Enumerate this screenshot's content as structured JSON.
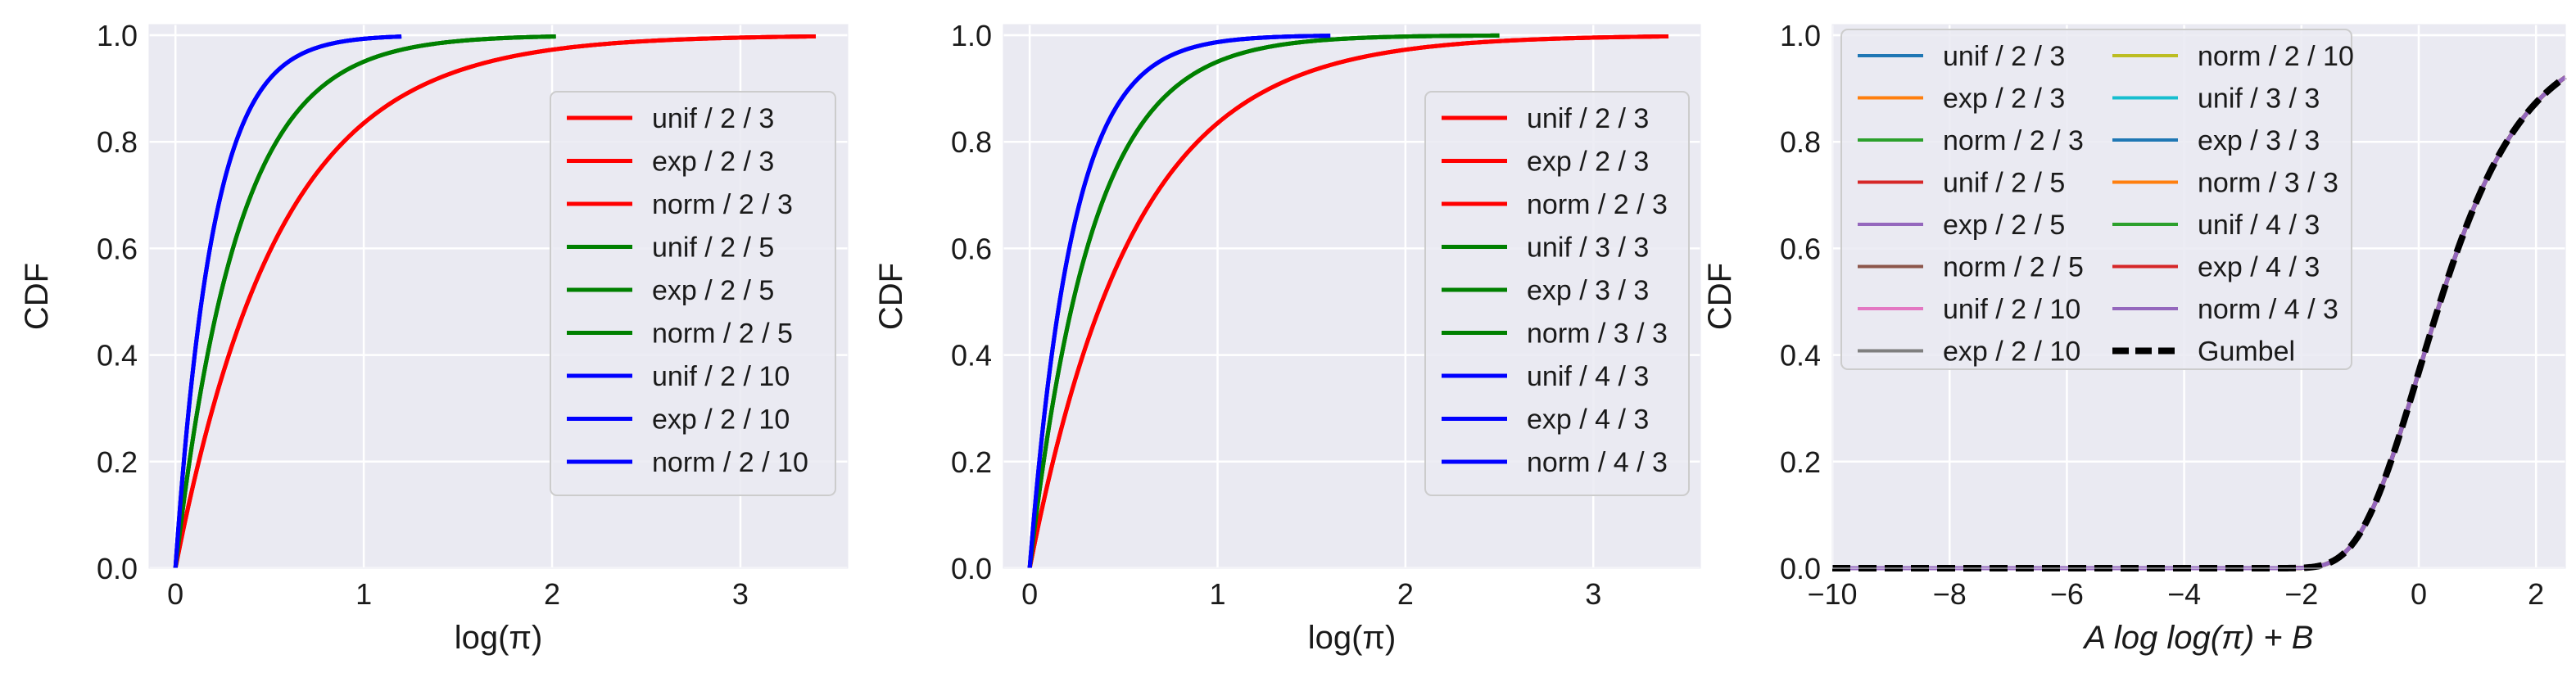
{
  "chart_data": [
    {
      "type": "line",
      "subtype": "cdf",
      "xlabel": "log(π)",
      "ylabel": "CDF",
      "xlim": [
        -0.14,
        3.57
      ],
      "ylim": [
        0,
        1.02
      ],
      "xticks": [
        0,
        1,
        2,
        3
      ],
      "xtick_labels": [
        "0",
        "1",
        "2",
        "3"
      ],
      "yticks": [
        0,
        0.2,
        0.4,
        0.6,
        0.8,
        1.0
      ],
      "ytick_labels": [
        "0.0",
        "0.2",
        "0.4",
        "0.6",
        "0.8",
        "1.0"
      ],
      "grid": true,
      "legend": {
        "position": "center-right",
        "columns": 1
      },
      "series": [
        {
          "name": "unif / 2 / 3",
          "color": "#ff0000",
          "dist": "exp",
          "scale": 0.555,
          "xmax": 3.4
        },
        {
          "name": "exp / 2 / 3",
          "color": "#ff0000",
          "dist": "exp",
          "scale": 0.555,
          "xmax": 3.4
        },
        {
          "name": "norm / 2 / 3",
          "color": "#ff0000",
          "dist": "exp",
          "scale": 0.555,
          "xmax": 3.4
        },
        {
          "name": "unif / 2 / 5",
          "color": "#008000",
          "dist": "exp",
          "scale": 0.333,
          "xmax": 2.02
        },
        {
          "name": "exp / 2 / 5",
          "color": "#008000",
          "dist": "exp",
          "scale": 0.333,
          "xmax": 2.02
        },
        {
          "name": "norm / 2 / 5",
          "color": "#008000",
          "dist": "exp",
          "scale": 0.333,
          "xmax": 2.02
        },
        {
          "name": "unif / 2 / 10",
          "color": "#0000ff",
          "dist": "exp",
          "scale": 0.2,
          "xmax": 1.2
        },
        {
          "name": "exp / 2 / 10",
          "color": "#0000ff",
          "dist": "exp",
          "scale": 0.2,
          "xmax": 1.2
        },
        {
          "name": "norm / 2 / 10",
          "color": "#0000ff",
          "dist": "exp",
          "scale": 0.2,
          "xmax": 1.2
        }
      ]
    },
    {
      "type": "line",
      "subtype": "cdf",
      "xlabel": "log(π)",
      "ylabel": "CDF",
      "xlim": [
        -0.14,
        3.57
      ],
      "ylim": [
        0,
        1.02
      ],
      "xticks": [
        0,
        1,
        2,
        3
      ],
      "xtick_labels": [
        "0",
        "1",
        "2",
        "3"
      ],
      "yticks": [
        0,
        0.2,
        0.4,
        0.6,
        0.8,
        1.0
      ],
      "ytick_labels": [
        "0.0",
        "0.2",
        "0.4",
        "0.6",
        "0.8",
        "1.0"
      ],
      "grid": true,
      "legend": {
        "position": "center-right",
        "columns": 1
      },
      "series": [
        {
          "name": "unif / 2 / 3",
          "color": "#ff0000",
          "dist": "exp",
          "scale": 0.555,
          "xmax": 3.4
        },
        {
          "name": "exp / 2 / 3",
          "color": "#ff0000",
          "dist": "exp",
          "scale": 0.555,
          "xmax": 3.4
        },
        {
          "name": "norm / 2 / 3",
          "color": "#ff0000",
          "dist": "exp",
          "scale": 0.555,
          "xmax": 3.4
        },
        {
          "name": "unif / 3 / 3",
          "color": "#008000",
          "dist": "exp",
          "scale": 0.333,
          "xmax": 2.5
        },
        {
          "name": "exp / 3 / 3",
          "color": "#008000",
          "dist": "exp",
          "scale": 0.333,
          "xmax": 2.5
        },
        {
          "name": "norm / 3 / 3",
          "color": "#008000",
          "dist": "exp",
          "scale": 0.333,
          "xmax": 2.5
        },
        {
          "name": "unif / 4 / 3",
          "color": "#0000ff",
          "dist": "exp",
          "scale": 0.23,
          "xmax": 1.6
        },
        {
          "name": "exp / 4 / 3",
          "color": "#0000ff",
          "dist": "exp",
          "scale": 0.23,
          "xmax": 1.6
        },
        {
          "name": "norm / 4 / 3",
          "color": "#0000ff",
          "dist": "exp",
          "scale": 0.23,
          "xmax": 1.6
        }
      ]
    },
    {
      "type": "line",
      "subtype": "cdf",
      "xlabel": "A log log(π) + B",
      "ylabel": "CDF",
      "xlim": [
        -10,
        2.5
      ],
      "ylim": [
        0,
        1.02
      ],
      "xticks": [
        -10,
        -8,
        -6,
        -4,
        -2,
        0,
        2
      ],
      "xtick_labels": [
        "−10",
        "−8",
        "−6",
        "−4",
        "−2",
        "0",
        "2"
      ],
      "yticks": [
        0,
        0.2,
        0.4,
        0.6,
        0.8,
        1.0
      ],
      "ytick_labels": [
        "0.0",
        "0.2",
        "0.4",
        "0.6",
        "0.8",
        "1.0"
      ],
      "grid": true,
      "legend": {
        "position": "top-left",
        "columns": 2
      },
      "series": [
        {
          "name": "unif / 2 / 3",
          "color": "#1f77b4",
          "dist": "gumbel",
          "xmax": 2.5
        },
        {
          "name": "exp / 2 / 3",
          "color": "#ff7f0e",
          "dist": "gumbel",
          "xmax": 2.5
        },
        {
          "name": "norm / 2 / 3",
          "color": "#2ca02c",
          "dist": "gumbel",
          "xmax": 2.5
        },
        {
          "name": "unif / 2 / 5",
          "color": "#d62728",
          "dist": "gumbel",
          "xmax": 2.5
        },
        {
          "name": "exp / 2 / 5",
          "color": "#9467bd",
          "dist": "gumbel",
          "xmax": 2.5
        },
        {
          "name": "norm / 2 / 5",
          "color": "#8c564b",
          "dist": "gumbel",
          "xmax": 2.5
        },
        {
          "name": "unif / 2 / 10",
          "color": "#e377c2",
          "dist": "gumbel",
          "xmax": 2.5
        },
        {
          "name": "exp / 2 / 10",
          "color": "#7f7f7f",
          "dist": "gumbel",
          "xmax": 2.5
        },
        {
          "name": "norm / 2 / 10",
          "color": "#bcbd22",
          "dist": "gumbel",
          "xmax": 2.5
        },
        {
          "name": "unif / 3 / 3",
          "color": "#17becf",
          "dist": "gumbel",
          "xmax": 2.5
        },
        {
          "name": "exp / 3 / 3",
          "color": "#1f77b4",
          "dist": "gumbel",
          "xmax": 2.5
        },
        {
          "name": "norm / 3 / 3",
          "color": "#ff7f0e",
          "dist": "gumbel",
          "xmax": 2.5
        },
        {
          "name": "unif / 4 / 3",
          "color": "#2ca02c",
          "dist": "gumbel",
          "xmax": 2.5
        },
        {
          "name": "exp / 4 / 3",
          "color": "#d62728",
          "dist": "gumbel",
          "xmax": 2.5
        },
        {
          "name": "norm / 4 / 3",
          "color": "#9467bd",
          "dist": "gumbel",
          "xmax": 2.5
        },
        {
          "name": "Gumbel",
          "color": "#000000",
          "dist": "gumbel",
          "xmax": 2.5,
          "dashed": true
        }
      ]
    }
  ]
}
